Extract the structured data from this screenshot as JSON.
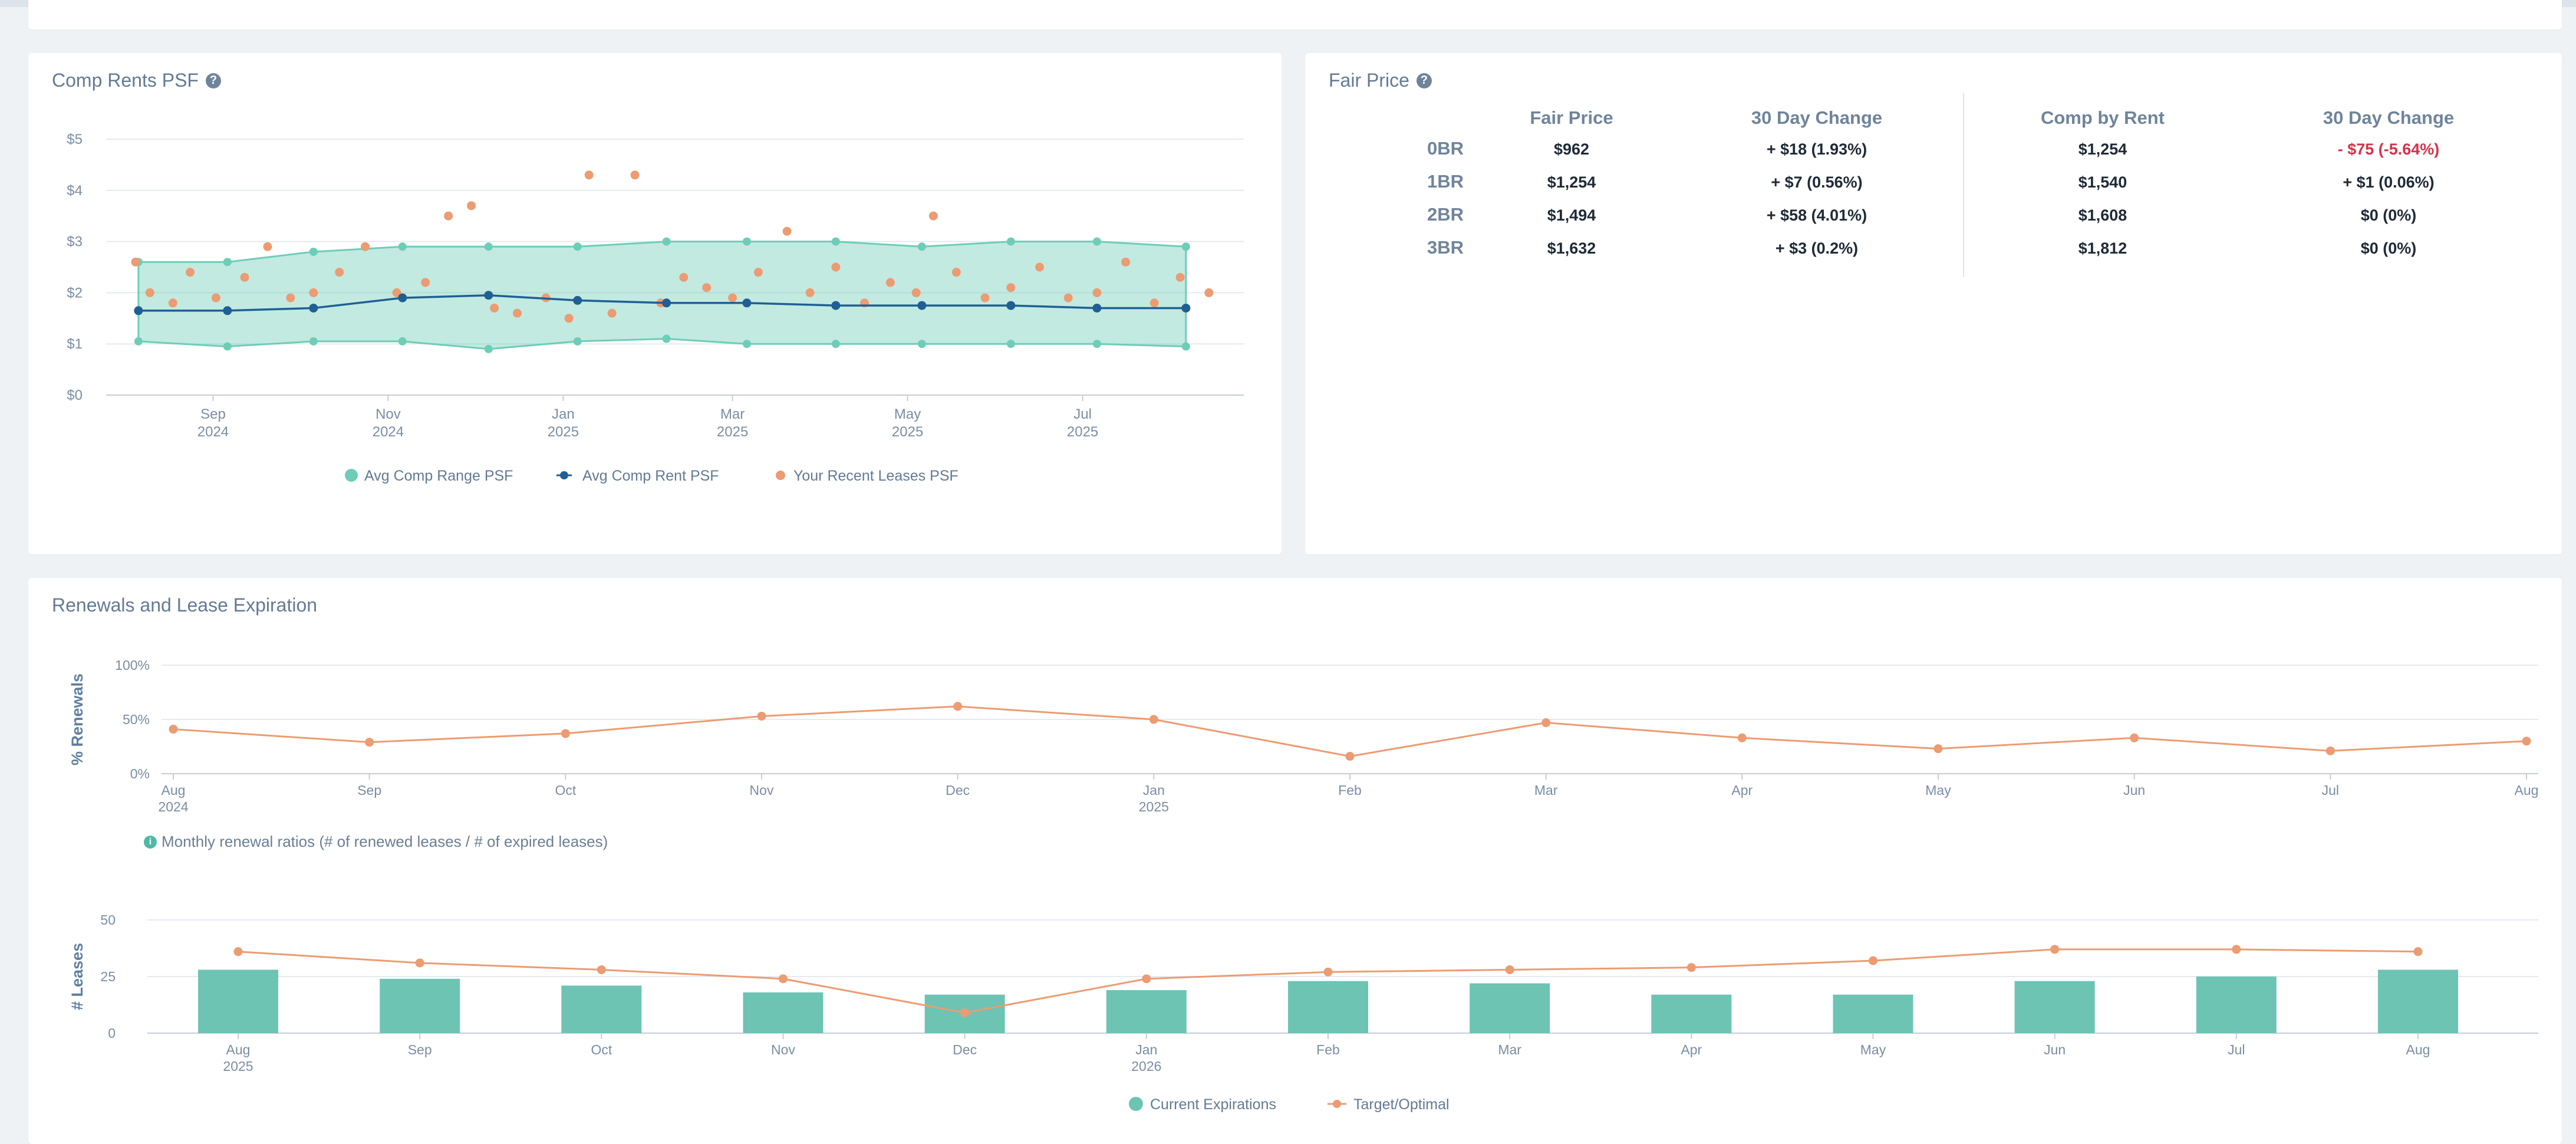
{
  "comp_rents": {
    "title": "Comp Rents PSF",
    "legend": [
      "Avg Comp Range PSF",
      "Avg Comp Rent PSF",
      "Your Recent Leases PSF"
    ]
  },
  "fair_price": {
    "title": "Fair Price",
    "headers": [
      "Fair Price",
      "30 Day Change",
      "Comp by Rent",
      "30 Day Change"
    ],
    "rows": [
      {
        "unit": "0BR",
        "fair_price": "$962",
        "change": "+ $18 (1.93%)",
        "comp": "$1,254",
        "comp_change": "- $75 (-5.64%)"
      },
      {
        "unit": "1BR",
        "fair_price": "$1,254",
        "change": "+ $7 (0.56%)",
        "comp": "$1,540",
        "comp_change": "+ $1 (0.06%)"
      },
      {
        "unit": "2BR",
        "fair_price": "$1,494",
        "change": "+ $58 (4.01%)",
        "comp": "$1,608",
        "comp_change": "$0 (0%)"
      },
      {
        "unit": "3BR",
        "fair_price": "$1,632",
        "change": "+ $3 (0.2%)",
        "comp": "$1,812",
        "comp_change": "$0 (0%)"
      }
    ]
  },
  "renewals": {
    "title": "Renewals and Lease Expiration",
    "info_note": "Monthly renewal ratios (# of renewed leases / # of expired leases)"
  },
  "chart_data": [
    {
      "type": "area",
      "x": [
        "2024-08",
        "2024-09",
        "2024-10",
        "2024-11",
        "2024-12",
        "2025-01",
        "2025-02",
        "2025-03",
        "2025-04",
        "2025-05",
        "2025-06",
        "2025-07",
        "2025-08"
      ],
      "x_ticks": [
        [
          "Sep",
          "2024"
        ],
        [
          "Nov",
          "2024"
        ],
        [
          "Jan",
          "2025"
        ],
        [
          "Mar",
          "2025"
        ],
        [
          "May",
          "2025"
        ],
        [
          "Jul",
          "2025"
        ]
      ],
      "ylim": [
        0,
        5
      ],
      "y_ticks": [
        "$0",
        "$1",
        "$2",
        "$3",
        "$4",
        "$5"
      ],
      "grid": true,
      "legend_position": "bottom",
      "series": [
        {
          "name": "Avg Comp Range PSF",
          "upper": [
            2.6,
            2.6,
            2.8,
            2.9,
            2.9,
            2.9,
            3.0,
            3.0,
            3.0,
            2.9,
            3.0,
            3.0,
            2.9
          ],
          "lower": [
            1.05,
            0.95,
            1.05,
            1.05,
            0.9,
            1.05,
            1.1,
            1.0,
            1.0,
            1.0,
            1.0,
            1.0,
            0.95
          ],
          "color": "#6dcdb8"
        },
        {
          "name": "Avg Comp Rent PSF",
          "values": [
            1.65,
            1.65,
            1.7,
            1.9,
            1.95,
            1.85,
            1.8,
            1.8,
            1.75,
            1.75,
            1.75,
            1.7,
            1.7
          ],
          "color": "#1f5f93"
        },
        {
          "name": "Your Recent Leases PSF",
          "color": "#ec9b72",
          "points": [
            {
              "x": "2024-08-05",
              "y": 2.6
            },
            {
              "x": "2024-08-10",
              "y": 2.0
            },
            {
              "x": "2024-08-18",
              "y": 1.8
            },
            {
              "x": "2024-08-24",
              "y": 2.4
            },
            {
              "x": "2024-09-02",
              "y": 1.9
            },
            {
              "x": "2024-09-12",
              "y": 2.3
            },
            {
              "x": "2024-09-20",
              "y": 2.9
            },
            {
              "x": "2024-09-28",
              "y": 1.9
            },
            {
              "x": "2024-10-06",
              "y": 2.0
            },
            {
              "x": "2024-10-15",
              "y": 2.4
            },
            {
              "x": "2024-10-24",
              "y": 2.9
            },
            {
              "x": "2024-11-04",
              "y": 2.0
            },
            {
              "x": "2024-11-14",
              "y": 2.2
            },
            {
              "x": "2024-11-22",
              "y": 3.5
            },
            {
              "x": "2024-11-30",
              "y": 3.7
            },
            {
              "x": "2024-12-08",
              "y": 1.7
            },
            {
              "x": "2024-12-16",
              "y": 1.6
            },
            {
              "x": "2024-12-26",
              "y": 1.9
            },
            {
              "x": "2025-01-03",
              "y": 1.5
            },
            {
              "x": "2025-01-10",
              "y": 4.3
            },
            {
              "x": "2025-01-18",
              "y": 1.6
            },
            {
              "x": "2025-01-26",
              "y": 4.3
            },
            {
              "x": "2025-02-04",
              "y": 1.8
            },
            {
              "x": "2025-02-12",
              "y": 2.3
            },
            {
              "x": "2025-02-20",
              "y": 2.1
            },
            {
              "x": "2025-03-01",
              "y": 1.9
            },
            {
              "x": "2025-03-10",
              "y": 2.4
            },
            {
              "x": "2025-03-20",
              "y": 3.2
            },
            {
              "x": "2025-03-28",
              "y": 2.0
            },
            {
              "x": "2025-04-06",
              "y": 2.5
            },
            {
              "x": "2025-04-16",
              "y": 1.8
            },
            {
              "x": "2025-04-25",
              "y": 2.2
            },
            {
              "x": "2025-05-04",
              "y": 2.0
            },
            {
              "x": "2025-05-10",
              "y": 3.5
            },
            {
              "x": "2025-05-18",
              "y": 2.4
            },
            {
              "x": "2025-05-28",
              "y": 1.9
            },
            {
              "x": "2025-06-06",
              "y": 2.1
            },
            {
              "x": "2025-06-16",
              "y": 2.5
            },
            {
              "x": "2025-06-26",
              "y": 1.9
            },
            {
              "x": "2025-07-06",
              "y": 2.0
            },
            {
              "x": "2025-07-16",
              "y": 2.6
            },
            {
              "x": "2025-07-26",
              "y": 1.8
            },
            {
              "x": "2025-08-04",
              "y": 2.3
            },
            {
              "x": "2025-08-14",
              "y": 2.0
            }
          ]
        }
      ]
    },
    {
      "type": "line",
      "ylabel": "% Renewals",
      "categories": [
        "Aug",
        "Sep",
        "Oct",
        "Nov",
        "Dec",
        "Jan",
        "Feb",
        "Mar",
        "Apr",
        "May",
        "Jun",
        "Jul",
        "Aug"
      ],
      "category_years": [
        "2024",
        "",
        "",
        "",
        "",
        "2025",
        "",
        "",
        "",
        "",
        "",
        "",
        ""
      ],
      "ylim": [
        0,
        100
      ],
      "y_ticks": [
        "0%",
        "50%",
        "100%"
      ],
      "grid": true,
      "series": [
        {
          "values": [
            41,
            29,
            37,
            53,
            62,
            50,
            16,
            47,
            33,
            23,
            33,
            21,
            30
          ],
          "color": "#ec9b72"
        }
      ]
    },
    {
      "type": "bar",
      "ylabel": "# Leases",
      "categories": [
        "Aug",
        "Sep",
        "Oct",
        "Nov",
        "Dec",
        "Jan",
        "Feb",
        "Mar",
        "Apr",
        "May",
        "Jun",
        "Jul",
        "Aug"
      ],
      "category_years": [
        "2025",
        "",
        "",
        "",
        "",
        "2026",
        "",
        "",
        "",
        "",
        "",
        "",
        ""
      ],
      "ylim": [
        0,
        50
      ],
      "y_ticks": [
        "0",
        "25",
        "50"
      ],
      "grid": true,
      "legend_position": "bottom",
      "legend": [
        "Current Expirations",
        "Target/Optimal"
      ],
      "series": [
        {
          "name": "Current Expirations",
          "values": [
            28,
            24,
            21,
            18,
            17,
            19,
            23,
            22,
            17,
            17,
            23,
            25,
            28
          ],
          "color": "#6dc4b3"
        },
        {
          "name": "Target/Optimal",
          "values": [
            36,
            31,
            28,
            24,
            9,
            24,
            27,
            28,
            29,
            32,
            37,
            37,
            36
          ],
          "color": "#ec9b72"
        }
      ]
    }
  ]
}
